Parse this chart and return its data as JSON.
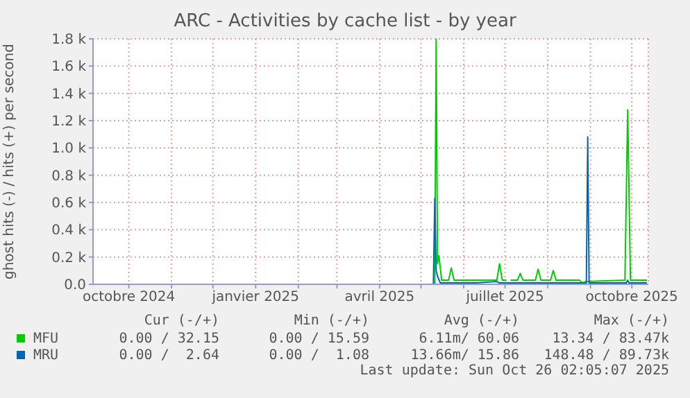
{
  "chart_data": {
    "type": "line",
    "title": "ARC - Activities by cache list - by year",
    "ylabel": "ghost hits (-) / hits (+) per second",
    "xlim": [
      "2024-09-05",
      "2025-10-13"
    ],
    "xticks": [
      {
        "value": "2024-10-01",
        "label": "octobre 2024"
      },
      {
        "value": "2024-11-01",
        "label": null
      },
      {
        "value": "2024-12-01",
        "label": null
      },
      {
        "value": "2025-01-01",
        "label": "janvier 2025"
      },
      {
        "value": "2025-02-01",
        "label": null
      },
      {
        "value": "2025-03-01",
        "label": null
      },
      {
        "value": "2025-04-01",
        "label": "avril 2025"
      },
      {
        "value": "2025-05-01",
        "label": null
      },
      {
        "value": "2025-06-01",
        "label": null
      },
      {
        "value": "2025-07-01",
        "label": "juillet 2025"
      },
      {
        "value": "2025-08-01",
        "label": null
      },
      {
        "value": "2025-09-01",
        "label": null
      },
      {
        "value": "2025-10-01",
        "label": "octobre 2025"
      }
    ],
    "ylim": [
      0,
      1800
    ],
    "yticks": [
      {
        "value": 0,
        "label": "0.0"
      },
      {
        "value": 200,
        "label": "0.2 k"
      },
      {
        "value": 400,
        "label": "0.4 k"
      },
      {
        "value": 600,
        "label": "0.6 k"
      },
      {
        "value": 800,
        "label": "0.8 k"
      },
      {
        "value": 1000,
        "label": "1.0 k"
      },
      {
        "value": 1200,
        "label": "1.2 k"
      },
      {
        "value": 1400,
        "label": "1.4 k"
      },
      {
        "value": 1600,
        "label": "1.6 k"
      },
      {
        "value": 1800,
        "label": "1.8 k"
      }
    ],
    "grid": true,
    "legend": "bottom",
    "marker": "none",
    "line_style": "solid",
    "series": [
      {
        "name": "MFU",
        "color": "#00cc00",
        "x": [
          "2025-05-11",
          "2025-05-12",
          "2025-05-13",
          "2025-05-14",
          "2025-05-16",
          "2025-05-21",
          "2025-05-23",
          "2025-05-25",
          "2025-06-25",
          "2025-06-27",
          "2025-06-29",
          "2025-07-02",
          "2025-07-03",
          "2025-07-05",
          "2025-07-10",
          "2025-07-12",
          "2025-07-14",
          "2025-07-23",
          "2025-07-25",
          "2025-07-27",
          "2025-08-03",
          "2025-08-05",
          "2025-08-07",
          "2025-08-24",
          "2025-08-26",
          "2025-08-29",
          "2025-09-26",
          "2025-09-28",
          "2025-09-30",
          "2025-10-12"
        ],
        "values": [
          0,
          1800,
          150,
          210,
          30,
          30,
          120,
          30,
          30,
          150,
          30,
          30,
          null,
          30,
          30,
          80,
          30,
          30,
          110,
          30,
          30,
          100,
          30,
          30,
          10,
          20,
          30,
          1280,
          30,
          30
        ]
      },
      {
        "name": "MRU",
        "color": "#0066b3",
        "x": [
          "2025-05-10",
          "2025-05-11",
          "2025-05-12",
          "2025-05-13",
          "2025-05-15",
          "2025-06-10",
          "2025-06-25",
          "2025-06-27",
          "2025-07-20",
          "2025-08-29",
          "2025-08-30",
          "2025-08-31",
          "2025-09-27",
          "2025-09-28",
          "2025-09-29",
          "2025-10-12"
        ],
        "values": [
          0,
          630,
          100,
          60,
          10,
          10,
          20,
          10,
          10,
          10,
          1080,
          10,
          10,
          30,
          10,
          10
        ]
      }
    ],
    "annotations": [
      "Cur (-/+)",
      "Min (-/+)",
      "Avg (-/+)",
      "Max (-/+)",
      "0.00 / 32.15",
      "0.00 / 15.59",
      "6.11m/ 60.06",
      "13.34 / 83.47k",
      "0.00 /  2.64",
      "0.00 /  1.08",
      "13.66m/ 15.86",
      "148.48 / 89.73k",
      "Last update: Sun Oct 26 02:05:07 2025"
    ]
  }
}
